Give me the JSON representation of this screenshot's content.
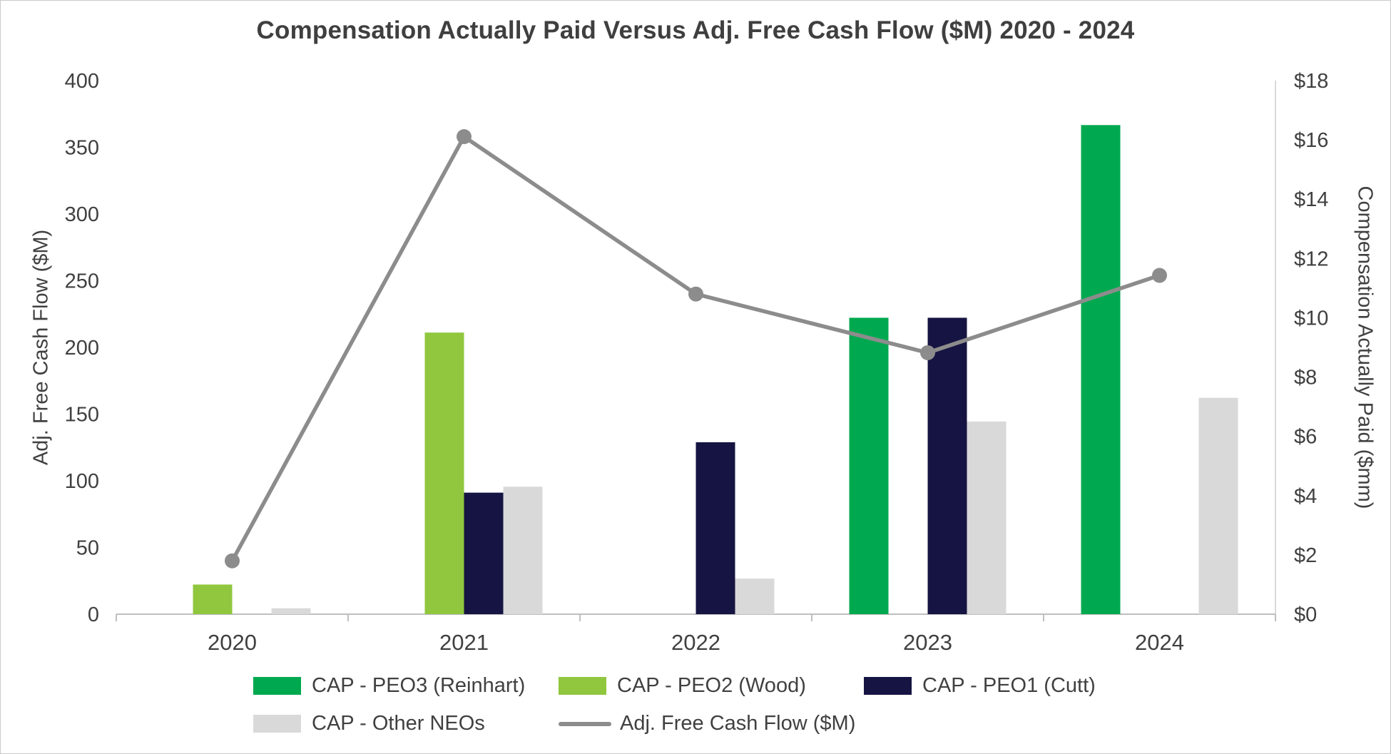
{
  "chart_data": {
    "type": "combo-bar-line",
    "title": "Compensation Actually Paid Versus Adj. Free Cash Flow ($M) 2020 - 2024",
    "categories": [
      "2020",
      "2021",
      "2022",
      "2023",
      "2024"
    ],
    "bar_series": [
      {
        "id": "cap-peo3-reinhart",
        "name": "CAP - PEO3 (Reinhart)",
        "color": "#00A94F",
        "axis": "right",
        "values": [
          null,
          null,
          null,
          10.0,
          16.5
        ]
      },
      {
        "id": "cap-peo2-wood",
        "name": "CAP - PEO2 (Wood)",
        "color": "#90C73E",
        "axis": "right",
        "values": [
          1.0,
          9.5,
          null,
          null,
          null
        ]
      },
      {
        "id": "cap-peo1-cutt",
        "name": "CAP - PEO1 (Cutt)",
        "color": "#161442",
        "axis": "right",
        "values": [
          null,
          4.1,
          5.8,
          10.0,
          null
        ]
      },
      {
        "id": "cap-other-neos",
        "name": "CAP - Other NEOs",
        "color": "#D9D9D9",
        "axis": "right",
        "values": [
          0.2,
          4.3,
          1.2,
          6.5,
          7.3
        ]
      }
    ],
    "line_series": {
      "id": "adj-free-cash-flow",
      "name": "Adj. Free Cash Flow ($M)",
      "color": "#8C8C8C",
      "axis": "left",
      "values": [
        40,
        358,
        240,
        196,
        254
      ]
    },
    "axes": {
      "left": {
        "title": "Adj. Free Cash Flow ($M)",
        "min": 0,
        "max": 400,
        "step": 50,
        "prefix": ""
      },
      "right": {
        "title": "Compensation Actually Paid ($mm)",
        "min": 0,
        "max": 18,
        "step": 2,
        "prefix": "$"
      }
    },
    "legend_rows": [
      [
        "cap-peo3-reinhart",
        "cap-peo2-wood",
        "cap-peo1-cutt"
      ],
      [
        "cap-other-neos",
        "adj-free-cash-flow"
      ]
    ],
    "grid": "off",
    "legend_position": "bottom"
  }
}
